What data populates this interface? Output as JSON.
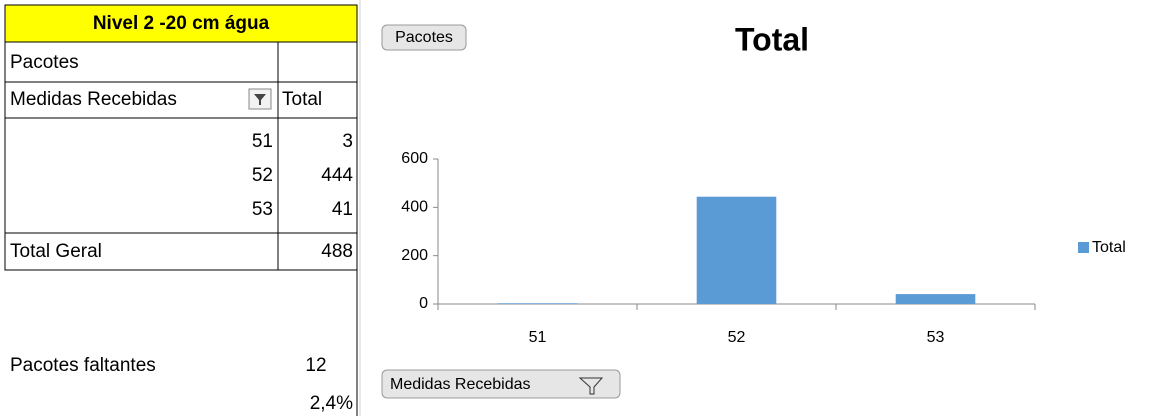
{
  "table": {
    "title": "Nivel 2 -20 cm água",
    "filter_label": "Pacotes",
    "row_header": "Medidas Recebidas",
    "value_header": "Total",
    "rows": [
      [
        "51",
        "3"
      ],
      [
        "52",
        "444"
      ],
      [
        "53",
        "41"
      ]
    ],
    "total_label": "Total Geral",
    "total": "488"
  },
  "summary": {
    "label": "Pacotes faltantes",
    "value": "12",
    "percent": "2,4%"
  },
  "chart_data": {
    "type": "bar",
    "title": "Total",
    "filter_button": "Pacotes",
    "axis_button": "Medidas Recebidas",
    "categories": [
      "51",
      "52",
      "53"
    ],
    "series": [
      {
        "name": "Total",
        "color": "#5b9bd5",
        "values": [
          3,
          444,
          41
        ]
      }
    ],
    "ylim": [
      0,
      600
    ],
    "yticks": [
      0,
      200,
      400,
      600
    ],
    "legend": "right"
  }
}
